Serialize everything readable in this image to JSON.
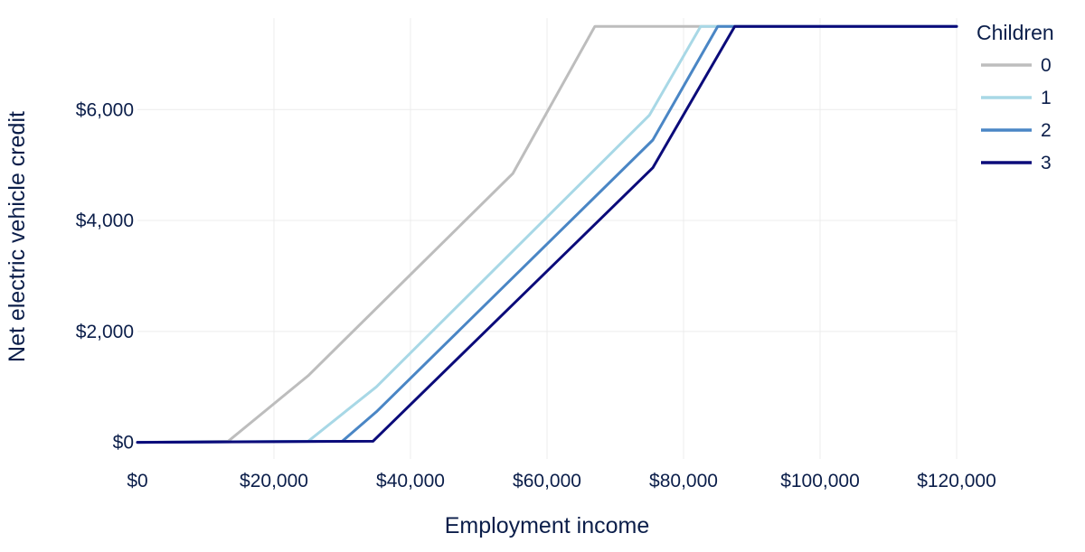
{
  "chart_data": {
    "type": "line",
    "xlabel": "Employment income",
    "ylabel": "Net electric vehicle credit",
    "xlim": [
      0,
      120000
    ],
    "ylim": [
      -300,
      7650
    ],
    "x_ticks": [
      0,
      20000,
      40000,
      60000,
      80000,
      100000,
      120000
    ],
    "x_tick_labels": [
      "$0",
      "$20,000",
      "$40,000",
      "$60,000",
      "$80,000",
      "$100,000",
      "$120,000"
    ],
    "y_ticks": [
      0,
      2000,
      4000,
      6000
    ],
    "y_tick_labels": [
      "$0",
      "$2,000",
      "$4,000",
      "$6,000"
    ],
    "grid": true,
    "legend_title": "Children",
    "legend_position": "top-right",
    "series": [
      {
        "name": "0",
        "color": "#bdbdbd",
        "points": [
          [
            0,
            0
          ],
          [
            13300,
            20
          ],
          [
            25000,
            1200
          ],
          [
            55000,
            4850
          ],
          [
            67000,
            7500
          ],
          [
            120000,
            7500
          ]
        ]
      },
      {
        "name": "1",
        "color": "#a8d8e6",
        "points": [
          [
            0,
            0
          ],
          [
            25000,
            20
          ],
          [
            35000,
            1000
          ],
          [
            75000,
            5900
          ],
          [
            82500,
            7500
          ],
          [
            120000,
            7500
          ]
        ]
      },
      {
        "name": "2",
        "color": "#4a86c5",
        "points": [
          [
            0,
            0
          ],
          [
            30000,
            20
          ],
          [
            35000,
            550
          ],
          [
            75500,
            5450
          ],
          [
            85000,
            7500
          ],
          [
            120000,
            7500
          ]
        ]
      },
      {
        "name": "3",
        "color": "#0b0b7a",
        "points": [
          [
            0,
            0
          ],
          [
            34500,
            20
          ],
          [
            75500,
            4950
          ],
          [
            87500,
            7500
          ],
          [
            120000,
            7500
          ]
        ]
      }
    ]
  }
}
